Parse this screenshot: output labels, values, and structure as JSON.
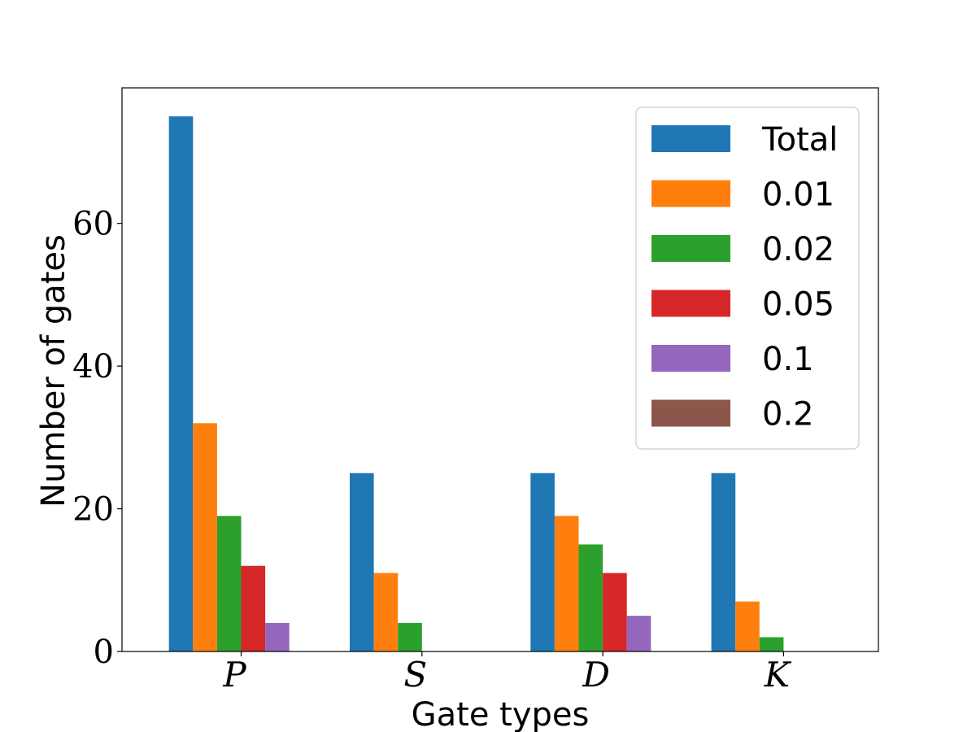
{
  "chart_data": {
    "type": "bar",
    "title": "",
    "xlabel": "Gate types",
    "ylabel": "Number of gates",
    "categories": [
      "P",
      "S",
      "D",
      "K"
    ],
    "series": [
      {
        "name": "Total",
        "color": "#1f77b4",
        "values": [
          75,
          25,
          25,
          25
        ]
      },
      {
        "name": "0.01",
        "color": "#ff7f0e",
        "values": [
          32,
          11,
          19,
          7
        ]
      },
      {
        "name": "0.02",
        "color": "#2ca02c",
        "values": [
          19,
          4,
          15,
          2
        ]
      },
      {
        "name": "0.05",
        "color": "#d62728",
        "values": [
          12,
          0,
          11,
          0
        ]
      },
      {
        "name": "0.1",
        "color": "#9467bd",
        "values": [
          4,
          0,
          5,
          0
        ]
      },
      {
        "name": "0.2",
        "color": "#8c564b",
        "values": [
          0,
          0,
          0,
          0
        ]
      }
    ],
    "ylim": [
      0,
      79
    ],
    "yticks": [
      0,
      20,
      40,
      60
    ],
    "grid": false,
    "legend_position": "top-right"
  }
}
